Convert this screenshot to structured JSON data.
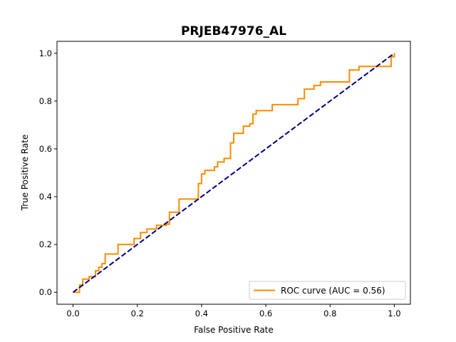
{
  "chart_data": {
    "type": "line",
    "title": "PRJEB47976_AL",
    "xlabel": "False Positive Rate",
    "ylabel": "True Positive Rate",
    "xlim": [
      -0.05,
      1.05
    ],
    "ylim": [
      -0.05,
      1.05
    ],
    "xticks": [
      0.0,
      0.2,
      0.4,
      0.6,
      0.8,
      1.0
    ],
    "yticks": [
      0.0,
      0.2,
      0.4,
      0.6,
      0.8,
      1.0
    ],
    "tick_labels_x": [
      "0.0",
      "0.2",
      "0.4",
      "0.6",
      "0.8",
      "1.0"
    ],
    "tick_labels_y": [
      "0.0",
      "0.2",
      "0.4",
      "0.6",
      "0.8",
      "1.0"
    ],
    "grid": false,
    "legend_position": "lower-right",
    "series": [
      {
        "name": "ROC curve (AUC = 0.56)",
        "color": "#ff8c00",
        "style": "solid",
        "x": [
          0.0,
          0.02,
          0.02,
          0.03,
          0.03,
          0.05,
          0.05,
          0.07,
          0.07,
          0.08,
          0.08,
          0.09,
          0.09,
          0.1,
          0.1,
          0.14,
          0.14,
          0.19,
          0.19,
          0.21,
          0.21,
          0.23,
          0.23,
          0.26,
          0.26,
          0.29,
          0.29,
          0.3,
          0.3,
          0.33,
          0.33,
          0.39,
          0.39,
          0.4,
          0.4,
          0.41,
          0.41,
          0.44,
          0.44,
          0.45,
          0.45,
          0.47,
          0.47,
          0.49,
          0.49,
          0.5,
          0.5,
          0.53,
          0.53,
          0.55,
          0.55,
          0.56,
          0.56,
          0.57,
          0.57,
          0.62,
          0.62,
          0.7,
          0.7,
          0.72,
          0.72,
          0.75,
          0.75,
          0.77,
          0.77,
          0.86,
          0.86,
          0.89,
          0.89,
          0.99,
          0.99,
          1.0,
          1.0
        ],
        "y": [
          0.0,
          0.0,
          0.03,
          0.03,
          0.055,
          0.055,
          0.065,
          0.065,
          0.09,
          0.09,
          0.105,
          0.105,
          0.12,
          0.12,
          0.16,
          0.16,
          0.2,
          0.2,
          0.225,
          0.225,
          0.25,
          0.25,
          0.265,
          0.265,
          0.28,
          0.28,
          0.285,
          0.285,
          0.335,
          0.335,
          0.39,
          0.39,
          0.455,
          0.455,
          0.495,
          0.495,
          0.51,
          0.51,
          0.525,
          0.525,
          0.545,
          0.545,
          0.56,
          0.56,
          0.625,
          0.625,
          0.665,
          0.665,
          0.695,
          0.695,
          0.705,
          0.705,
          0.745,
          0.745,
          0.76,
          0.76,
          0.785,
          0.785,
          0.81,
          0.81,
          0.85,
          0.85,
          0.865,
          0.865,
          0.88,
          0.88,
          0.93,
          0.93,
          0.945,
          0.945,
          0.985,
          0.985,
          1.0
        ]
      },
      {
        "name": "",
        "color": "#000080",
        "style": "dashed",
        "x": [
          0.0,
          1.0
        ],
        "y": [
          0.0,
          1.0
        ]
      }
    ]
  }
}
